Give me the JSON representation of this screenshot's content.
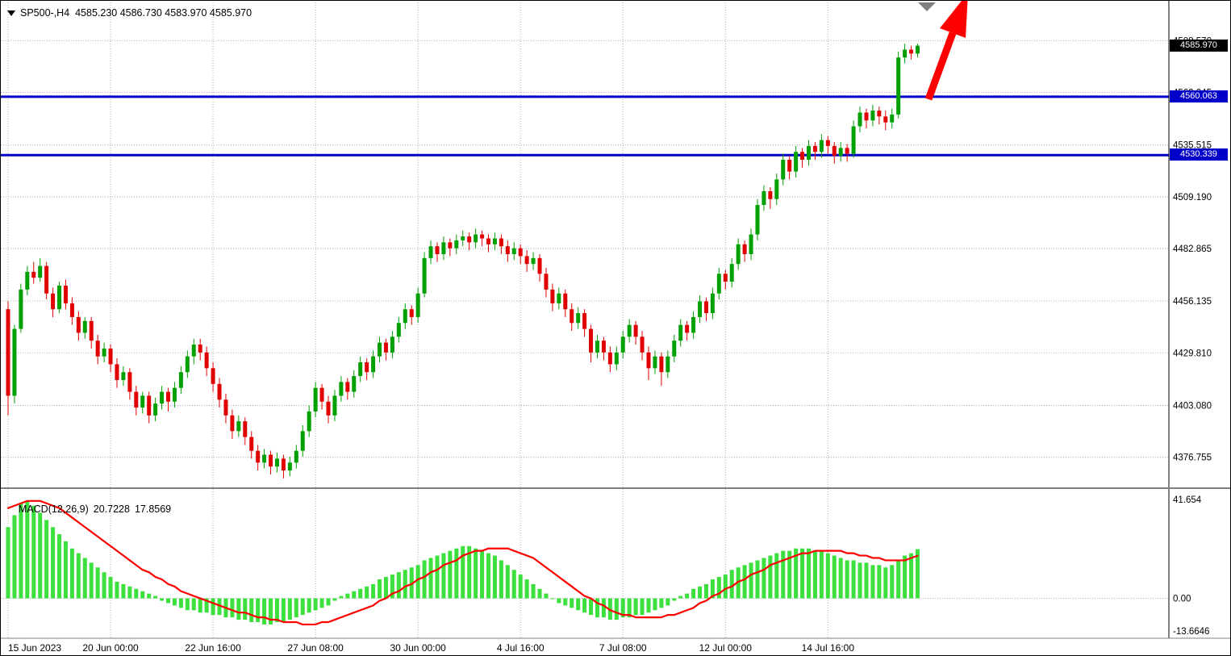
{
  "header": {
    "text": "SP500-,H4  4585.230 4586.730 4583.970 4585.970",
    "symbol": "SP500-",
    "timeframe": "H4",
    "open": "4585.230",
    "high": "4586.730",
    "low": "4583.970",
    "close": "4585.970"
  },
  "indicator": {
    "label": "MACD(12,26,9)",
    "value_main": "20.7228",
    "value_signal": "17.8569"
  },
  "price_tags": {
    "current": "4585.970",
    "resistance": "4560.063",
    "support": "4530.339"
  },
  "chart_data": {
    "type": "candlestick+macd",
    "symbol": "SP500-",
    "timeframe": "H4",
    "price_axis": {
      "min": 4361,
      "max": 4608,
      "ticks": [
        "4588.570",
        "4562.245",
        "4535.515",
        "4509.190",
        "4482.865",
        "4456.135",
        "4429.810",
        "4403.080",
        "4376.755"
      ]
    },
    "macd_axis": {
      "min": -16.8,
      "max": 45.7,
      "ticks": [
        "41.654",
        "0.00",
        "-13.6646"
      ]
    },
    "time_ticks": [
      {
        "label": "15 Jun 2023",
        "bar": 0
      },
      {
        "label": "20 Jun 00:00",
        "bar": 16
      },
      {
        "label": "22 Jun 16:00",
        "bar": 32
      },
      {
        "label": "27 Jun 08:00",
        "bar": 48
      },
      {
        "label": "30 Jun 00:00",
        "bar": 64
      },
      {
        "label": "4 Jul 16:00",
        "bar": 80
      },
      {
        "label": "7 Jul 08:00",
        "bar": 96
      },
      {
        "label": "12 Jul 00:00",
        "bar": 112
      },
      {
        "label": "14 Jul 16:00",
        "bar": 128
      }
    ],
    "horizontal_levels": [
      4560.063,
      4530.339
    ],
    "annotations": {
      "trend_arrow": {
        "shape": "arrow",
        "direction": "up",
        "color": "#FF0000"
      },
      "anchor_marker": {
        "shape": "triangle-down",
        "color": "#808080"
      }
    },
    "colors": {
      "up": "#00A000",
      "down": "#E00000",
      "macd_hist": "#3CE03C",
      "signal": "#FF0000",
      "level": "#0000C8",
      "grid": "#ADADAD",
      "bg": "#FFFFFF",
      "text": "#000000",
      "tag_current_bg": "#000000",
      "tag_level_bg": "#0000C8",
      "arrow": "#FF0000"
    },
    "candles": [
      [
        4452,
        4456,
        4398,
        4408
      ],
      [
        4408,
        4444,
        4404,
        4442
      ],
      [
        4442,
        4465,
        4440,
        4462
      ],
      [
        4462,
        4474,
        4459,
        4471
      ],
      [
        4471,
        4476,
        4465,
        4468
      ],
      [
        4468,
        4478,
        4466,
        4474
      ],
      [
        4474,
        4476,
        4457,
        4460
      ],
      [
        4460,
        4463,
        4448,
        4452
      ],
      [
        4452,
        4466,
        4450,
        4464
      ],
      [
        4464,
        4467,
        4452,
        4455
      ],
      [
        4455,
        4458,
        4444,
        4448
      ],
      [
        4448,
        4451,
        4436,
        4440
      ],
      [
        4440,
        4448,
        4437,
        4446
      ],
      [
        4446,
        4448,
        4432,
        4436
      ],
      [
        4436,
        4439,
        4424,
        4428
      ],
      [
        4428,
        4435,
        4425,
        4432
      ],
      [
        4432,
        4434,
        4420,
        4424
      ],
      [
        4424,
        4427,
        4412,
        4416
      ],
      [
        4416,
        4423,
        4413,
        4420
      ],
      [
        4420,
        4422,
        4406,
        4410
      ],
      [
        4410,
        4413,
        4398,
        4402
      ],
      [
        4402,
        4410,
        4399,
        4408
      ],
      [
        4408,
        4410,
        4394,
        4398
      ],
      [
        4398,
        4407,
        4395,
        4404
      ],
      [
        4404,
        4413,
        4401,
        4410
      ],
      [
        4410,
        4412,
        4400,
        4405
      ],
      [
        4405,
        4415,
        4402,
        4412
      ],
      [
        4412,
        4423,
        4409,
        4420
      ],
      [
        4420,
        4431,
        4417,
        4428
      ],
      [
        4428,
        4437,
        4424,
        4434
      ],
      [
        4434,
        4437,
        4426,
        4430
      ],
      [
        4430,
        4433,
        4418,
        4422
      ],
      [
        4422,
        4425,
        4410,
        4414
      ],
      [
        4414,
        4417,
        4402,
        4406
      ],
      [
        4406,
        4409,
        4394,
        4398
      ],
      [
        4398,
        4401,
        4386,
        4390
      ],
      [
        4390,
        4398,
        4387,
        4395
      ],
      [
        4395,
        4397,
        4383,
        4387
      ],
      [
        4387,
        4390,
        4376,
        4380
      ],
      [
        4380,
        4383,
        4370,
        4374
      ],
      [
        4374,
        4381,
        4371,
        4378
      ],
      [
        4378,
        4380,
        4368,
        4372
      ],
      [
        4372,
        4379,
        4369,
        4376
      ],
      [
        4376,
        4378,
        4366,
        4370
      ],
      [
        4370,
        4377,
        4367,
        4374
      ],
      [
        4374,
        4383,
        4371,
        4380
      ],
      [
        4380,
        4393,
        4377,
        4390
      ],
      [
        4390,
        4403,
        4387,
        4400
      ],
      [
        4400,
        4415,
        4397,
        4412
      ],
      [
        4412,
        4414,
        4401,
        4405
      ],
      [
        4405,
        4408,
        4394,
        4398
      ],
      [
        4398,
        4411,
        4395,
        4408
      ],
      [
        4408,
        4418,
        4405,
        4415
      ],
      [
        4415,
        4417,
        4406,
        4410
      ],
      [
        4410,
        4421,
        4407,
        4418
      ],
      [
        4418,
        4428,
        4415,
        4425
      ],
      [
        4425,
        4427,
        4416,
        4420
      ],
      [
        4420,
        4431,
        4417,
        4428
      ],
      [
        4428,
        4438,
        4425,
        4435
      ],
      [
        4435,
        4437,
        4426,
        4430
      ],
      [
        4430,
        4441,
        4427,
        4438
      ],
      [
        4438,
        4448,
        4435,
        4445
      ],
      [
        4445,
        4455,
        4442,
        4452
      ],
      [
        4452,
        4454,
        4444,
        4448
      ],
      [
        4448,
        4463,
        4445,
        4460
      ],
      [
        4460,
        4481,
        4458,
        4478
      ],
      [
        4478,
        4487,
        4475,
        4484
      ],
      [
        4484,
        4486,
        4476,
        4480
      ],
      [
        4480,
        4489,
        4477,
        4486
      ],
      [
        4486,
        4488,
        4479,
        4483
      ],
      [
        4483,
        4490,
        4480,
        4487
      ],
      [
        4487,
        4492,
        4484,
        4489
      ],
      [
        4489,
        4491,
        4482,
        4486
      ],
      [
        4486,
        4493,
        4483,
        4490
      ],
      [
        4490,
        4492,
        4484,
        4488
      ],
      [
        4488,
        4490,
        4481,
        4485
      ],
      [
        4485,
        4491,
        4482,
        4488
      ],
      [
        4488,
        4490,
        4480,
        4484
      ],
      [
        4484,
        4487,
        4476,
        4480
      ],
      [
        4480,
        4486,
        4477,
        4483
      ],
      [
        4483,
        4485,
        4475,
        4479
      ],
      [
        4479,
        4482,
        4471,
        4475
      ],
      [
        4475,
        4481,
        4472,
        4478
      ],
      [
        4478,
        4480,
        4466,
        4470
      ],
      [
        4470,
        4473,
        4458,
        4462
      ],
      [
        4462,
        4465,
        4451,
        4455
      ],
      [
        4455,
        4463,
        4452,
        4460
      ],
      [
        4460,
        4462,
        4448,
        4452
      ],
      [
        4452,
        4455,
        4441,
        4445
      ],
      [
        4445,
        4453,
        4442,
        4450
      ],
      [
        4450,
        4452,
        4438,
        4442
      ],
      [
        4442,
        4444,
        4425,
        4430
      ],
      [
        4430,
        4439,
        4427,
        4436
      ],
      [
        4436,
        4438,
        4426,
        4430
      ],
      [
        4430,
        4433,
        4420,
        4424
      ],
      [
        4424,
        4433,
        4421,
        4430
      ],
      [
        4430,
        4441,
        4427,
        4438
      ],
      [
        4438,
        4447,
        4435,
        4444
      ],
      [
        4444,
        4446,
        4434,
        4438
      ],
      [
        4438,
        4441,
        4426,
        4430
      ],
      [
        4430,
        4433,
        4416,
        4422
      ],
      [
        4422,
        4431,
        4419,
        4428
      ],
      [
        4428,
        4430,
        4413,
        4420
      ],
      [
        4420,
        4431,
        4417,
        4428
      ],
      [
        4428,
        4439,
        4425,
        4436
      ],
      [
        4436,
        4447,
        4433,
        4444
      ],
      [
        4444,
        4446,
        4436,
        4440
      ],
      [
        4440,
        4451,
        4437,
        4448
      ],
      [
        4448,
        4459,
        4445,
        4456
      ],
      [
        4456,
        4458,
        4446,
        4450
      ],
      [
        4450,
        4463,
        4447,
        4460
      ],
      [
        4460,
        4473,
        4457,
        4470
      ],
      [
        4470,
        4472,
        4462,
        4466
      ],
      [
        4466,
        4478,
        4463,
        4475
      ],
      [
        4475,
        4488,
        4472,
        4485
      ],
      [
        4485,
        4487,
        4476,
        4480
      ],
      [
        4480,
        4493,
        4477,
        4490
      ],
      [
        4490,
        4508,
        4487,
        4505
      ],
      [
        4505,
        4515,
        4502,
        4512
      ],
      [
        4512,
        4514,
        4503,
        4508
      ],
      [
        4508,
        4521,
        4505,
        4518
      ],
      [
        4518,
        4531,
        4515,
        4528
      ],
      [
        4528,
        4530,
        4518,
        4522
      ],
      [
        4522,
        4535,
        4519,
        4532
      ],
      [
        4532,
        4534,
        4524,
        4528
      ],
      [
        4528,
        4538,
        4525,
        4535
      ],
      [
        4535,
        4537,
        4528,
        4532
      ],
      [
        4532,
        4541,
        4529,
        4538
      ],
      [
        4538,
        4540,
        4531,
        4535
      ],
      [
        4535,
        4537,
        4526,
        4530
      ],
      [
        4530,
        4537,
        4527,
        4534
      ],
      [
        4534,
        4536,
        4527,
        4531
      ],
      [
        4531,
        4548,
        4529,
        4545
      ],
      [
        4545,
        4555,
        4542,
        4552
      ],
      [
        4552,
        4554,
        4544,
        4548
      ],
      [
        4548,
        4556,
        4545,
        4553
      ],
      [
        4553,
        4555,
        4546,
        4550
      ],
      [
        4550,
        4553,
        4543,
        4547
      ],
      [
        4547,
        4554,
        4544,
        4551
      ],
      [
        4551,
        4583,
        4549,
        4580
      ],
      [
        4580,
        4587,
        4577,
        4584
      ],
      [
        4584,
        4586,
        4579,
        4582
      ],
      [
        4582,
        4587,
        4580,
        4586
      ]
    ],
    "macd": {
      "params": "12,26,9",
      "histogram": [
        30,
        35,
        40,
        41,
        39,
        36,
        33,
        30,
        27,
        24,
        21,
        19,
        17,
        15,
        13,
        11,
        9,
        7,
        6,
        5,
        4,
        3,
        2,
        1,
        -1,
        -2,
        -3,
        -4,
        -5,
        -5,
        -6,
        -6,
        -7,
        -7,
        -8,
        -8,
        -9,
        -9,
        -10,
        -10,
        -11,
        -11,
        -10,
        -10,
        -9,
        -8,
        -7,
        -6,
        -5,
        -4,
        -3,
        -1,
        1,
        2,
        3,
        4,
        5,
        6,
        8,
        9,
        10,
        11,
        12,
        13,
        14,
        16,
        17,
        18,
        19,
        20,
        21,
        22,
        22,
        21,
        20,
        19,
        18,
        16,
        14,
        12,
        10,
        8,
        6,
        4,
        2,
        0,
        -2,
        -3,
        -4,
        -5,
        -6,
        -7,
        -8,
        -8,
        -9,
        -9,
        -8,
        -8,
        -7,
        -7,
        -6,
        -5,
        -4,
        -3,
        -1,
        1,
        2,
        4,
        5,
        6,
        8,
        9,
        10,
        12,
        13,
        14,
        15,
        16,
        17,
        18,
        19,
        20,
        20,
        21,
        21,
        21,
        20,
        20,
        19,
        18,
        17,
        16,
        16,
        15,
        15,
        14,
        14,
        13,
        14,
        16,
        18,
        19,
        20.7
      ],
      "signal": [
        38,
        39,
        40,
        41,
        41,
        41,
        40,
        39,
        38,
        36,
        34,
        32,
        30,
        28,
        26,
        24,
        22,
        20,
        18,
        16,
        14,
        12,
        11,
        9,
        8,
        6,
        5,
        3,
        2,
        1,
        0,
        -1,
        -2,
        -3,
        -4,
        -5,
        -6,
        -6,
        -7,
        -8,
        -8,
        -9,
        -9,
        -10,
        -10,
        -10,
        -11,
        -11,
        -11,
        -10,
        -10,
        -9,
        -8,
        -7,
        -6,
        -5,
        -4,
        -3,
        -1,
        0,
        2,
        3,
        5,
        6,
        8,
        9,
        11,
        12,
        14,
        15,
        16,
        18,
        19,
        20,
        20,
        21,
        21,
        21,
        21,
        20,
        19,
        18,
        17,
        15,
        13,
        11,
        9,
        7,
        5,
        3,
        1,
        0,
        -2,
        -3,
        -5,
        -6,
        -7,
        -7,
        -8,
        -8,
        -8,
        -8,
        -8,
        -7,
        -7,
        -6,
        -5,
        -4,
        -2,
        -1,
        1,
        2,
        4,
        5,
        7,
        8,
        10,
        11,
        12,
        14,
        15,
        16,
        17,
        18,
        19,
        19,
        20,
        20,
        20,
        20,
        20,
        19,
        19,
        18,
        18,
        17,
        17,
        16,
        16,
        16,
        16,
        17,
        17.9
      ]
    }
  }
}
